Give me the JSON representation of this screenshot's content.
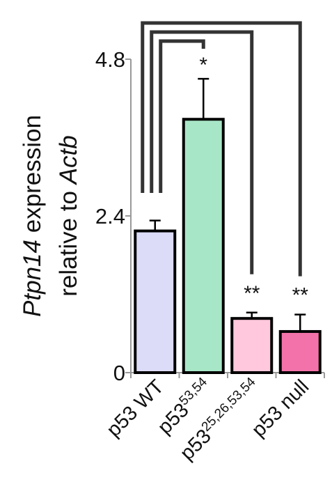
{
  "chart_data": {
    "type": "bar",
    "y_label": {
      "lines": [
        [
          {
            "text": "Ptpn14",
            "italic": true
          },
          {
            "text": " expression",
            "italic": false
          }
        ],
        [
          {
            "text": "relative to ",
            "italic": false
          },
          {
            "text": "Actb",
            "italic": true
          }
        ]
      ]
    },
    "categories": [
      "p53 WT",
      "p53",
      "p53",
      "p53 null"
    ],
    "category_superscripts": [
      null,
      "53,54",
      "25,26,53,54",
      null
    ],
    "values": [
      2.17,
      3.88,
      0.83,
      0.63
    ],
    "errors": [
      0.16,
      0.62,
      0.09,
      0.26
    ],
    "colors": [
      "#dcdcf8",
      "#a8e6c8",
      "#ffc8dc",
      "#f472aa"
    ],
    "significance": [
      null,
      "*",
      "**",
      "**"
    ],
    "ylim": [
      0,
      4.8
    ],
    "yticks": [
      0,
      2.4,
      4.8
    ]
  }
}
